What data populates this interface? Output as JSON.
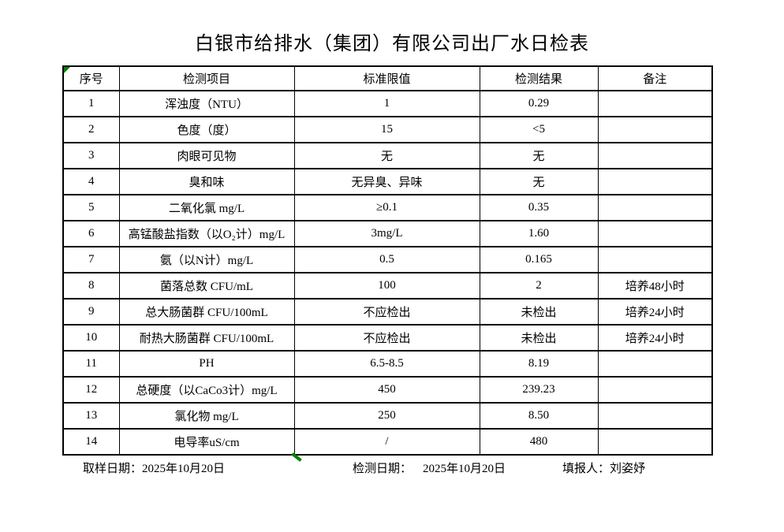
{
  "title": "白银市给排水（集团）有限公司出厂水日检表",
  "table": {
    "headers": [
      "序号",
      "检测项目",
      "标准限值",
      "检测结果",
      "备注"
    ],
    "rows": [
      {
        "no": "1",
        "item": "浑浊度（NTU）",
        "limit": "1",
        "result": "0.29",
        "remark": ""
      },
      {
        "no": "2",
        "item": "色度（度）",
        "limit": "15",
        "result": "<5",
        "remark": ""
      },
      {
        "no": "3",
        "item": "肉眼可见物",
        "limit": "无",
        "result": "无",
        "remark": ""
      },
      {
        "no": "4",
        "item": "臭和味",
        "limit": "无异臭、异味",
        "result": "无",
        "remark": ""
      },
      {
        "no": "5",
        "item": "二氧化氯 mg/L",
        "limit": "≥0.1",
        "result": "0.35",
        "remark": ""
      },
      {
        "no": "6",
        "item": "高锰酸盐指数（以O₂计）mg/L",
        "limit": "3mg/L",
        "result": "1.60",
        "remark": ""
      },
      {
        "no": "7",
        "item": "氨（以N计）mg/L",
        "limit": "0.5",
        "result": "0.165",
        "remark": ""
      },
      {
        "no": "8",
        "item": "菌落总数 CFU/mL",
        "limit": "100",
        "result": "2",
        "remark": "培养48小时"
      },
      {
        "no": "9",
        "item": "总大肠菌群 CFU/100mL",
        "limit": "不应检出",
        "result": "未检出",
        "remark": "培养24小时"
      },
      {
        "no": "10",
        "item": "耐热大肠菌群 CFU/100mL",
        "limit": "不应检出",
        "result": "未检出",
        "remark": "培养24小时"
      },
      {
        "no": "11",
        "item": "PH",
        "limit": "6.5-8.5",
        "result": "8.19",
        "remark": ""
      },
      {
        "no": "12",
        "item": "总硬度（以CaCo3计）mg/L",
        "limit": "450",
        "result": "239.23",
        "remark": ""
      },
      {
        "no": "13",
        "item": "氯化物 mg/L",
        "limit": "250",
        "result": "8.50",
        "remark": ""
      },
      {
        "no": "14",
        "item": "电导率uS/cm",
        "limit": "/",
        "result": "480",
        "remark": ""
      }
    ]
  },
  "footer": {
    "sample_date_label": "取样日期：",
    "sample_date": "2025年10月20日",
    "test_date_label": "检测日期：",
    "test_date": "2025年10月20日",
    "reporter_label": "填报人：",
    "reporter": "刘姿妤"
  },
  "colors": {
    "text": "#000000",
    "border": "#000000",
    "marker_green": "#008000",
    "background": "#ffffff"
  }
}
